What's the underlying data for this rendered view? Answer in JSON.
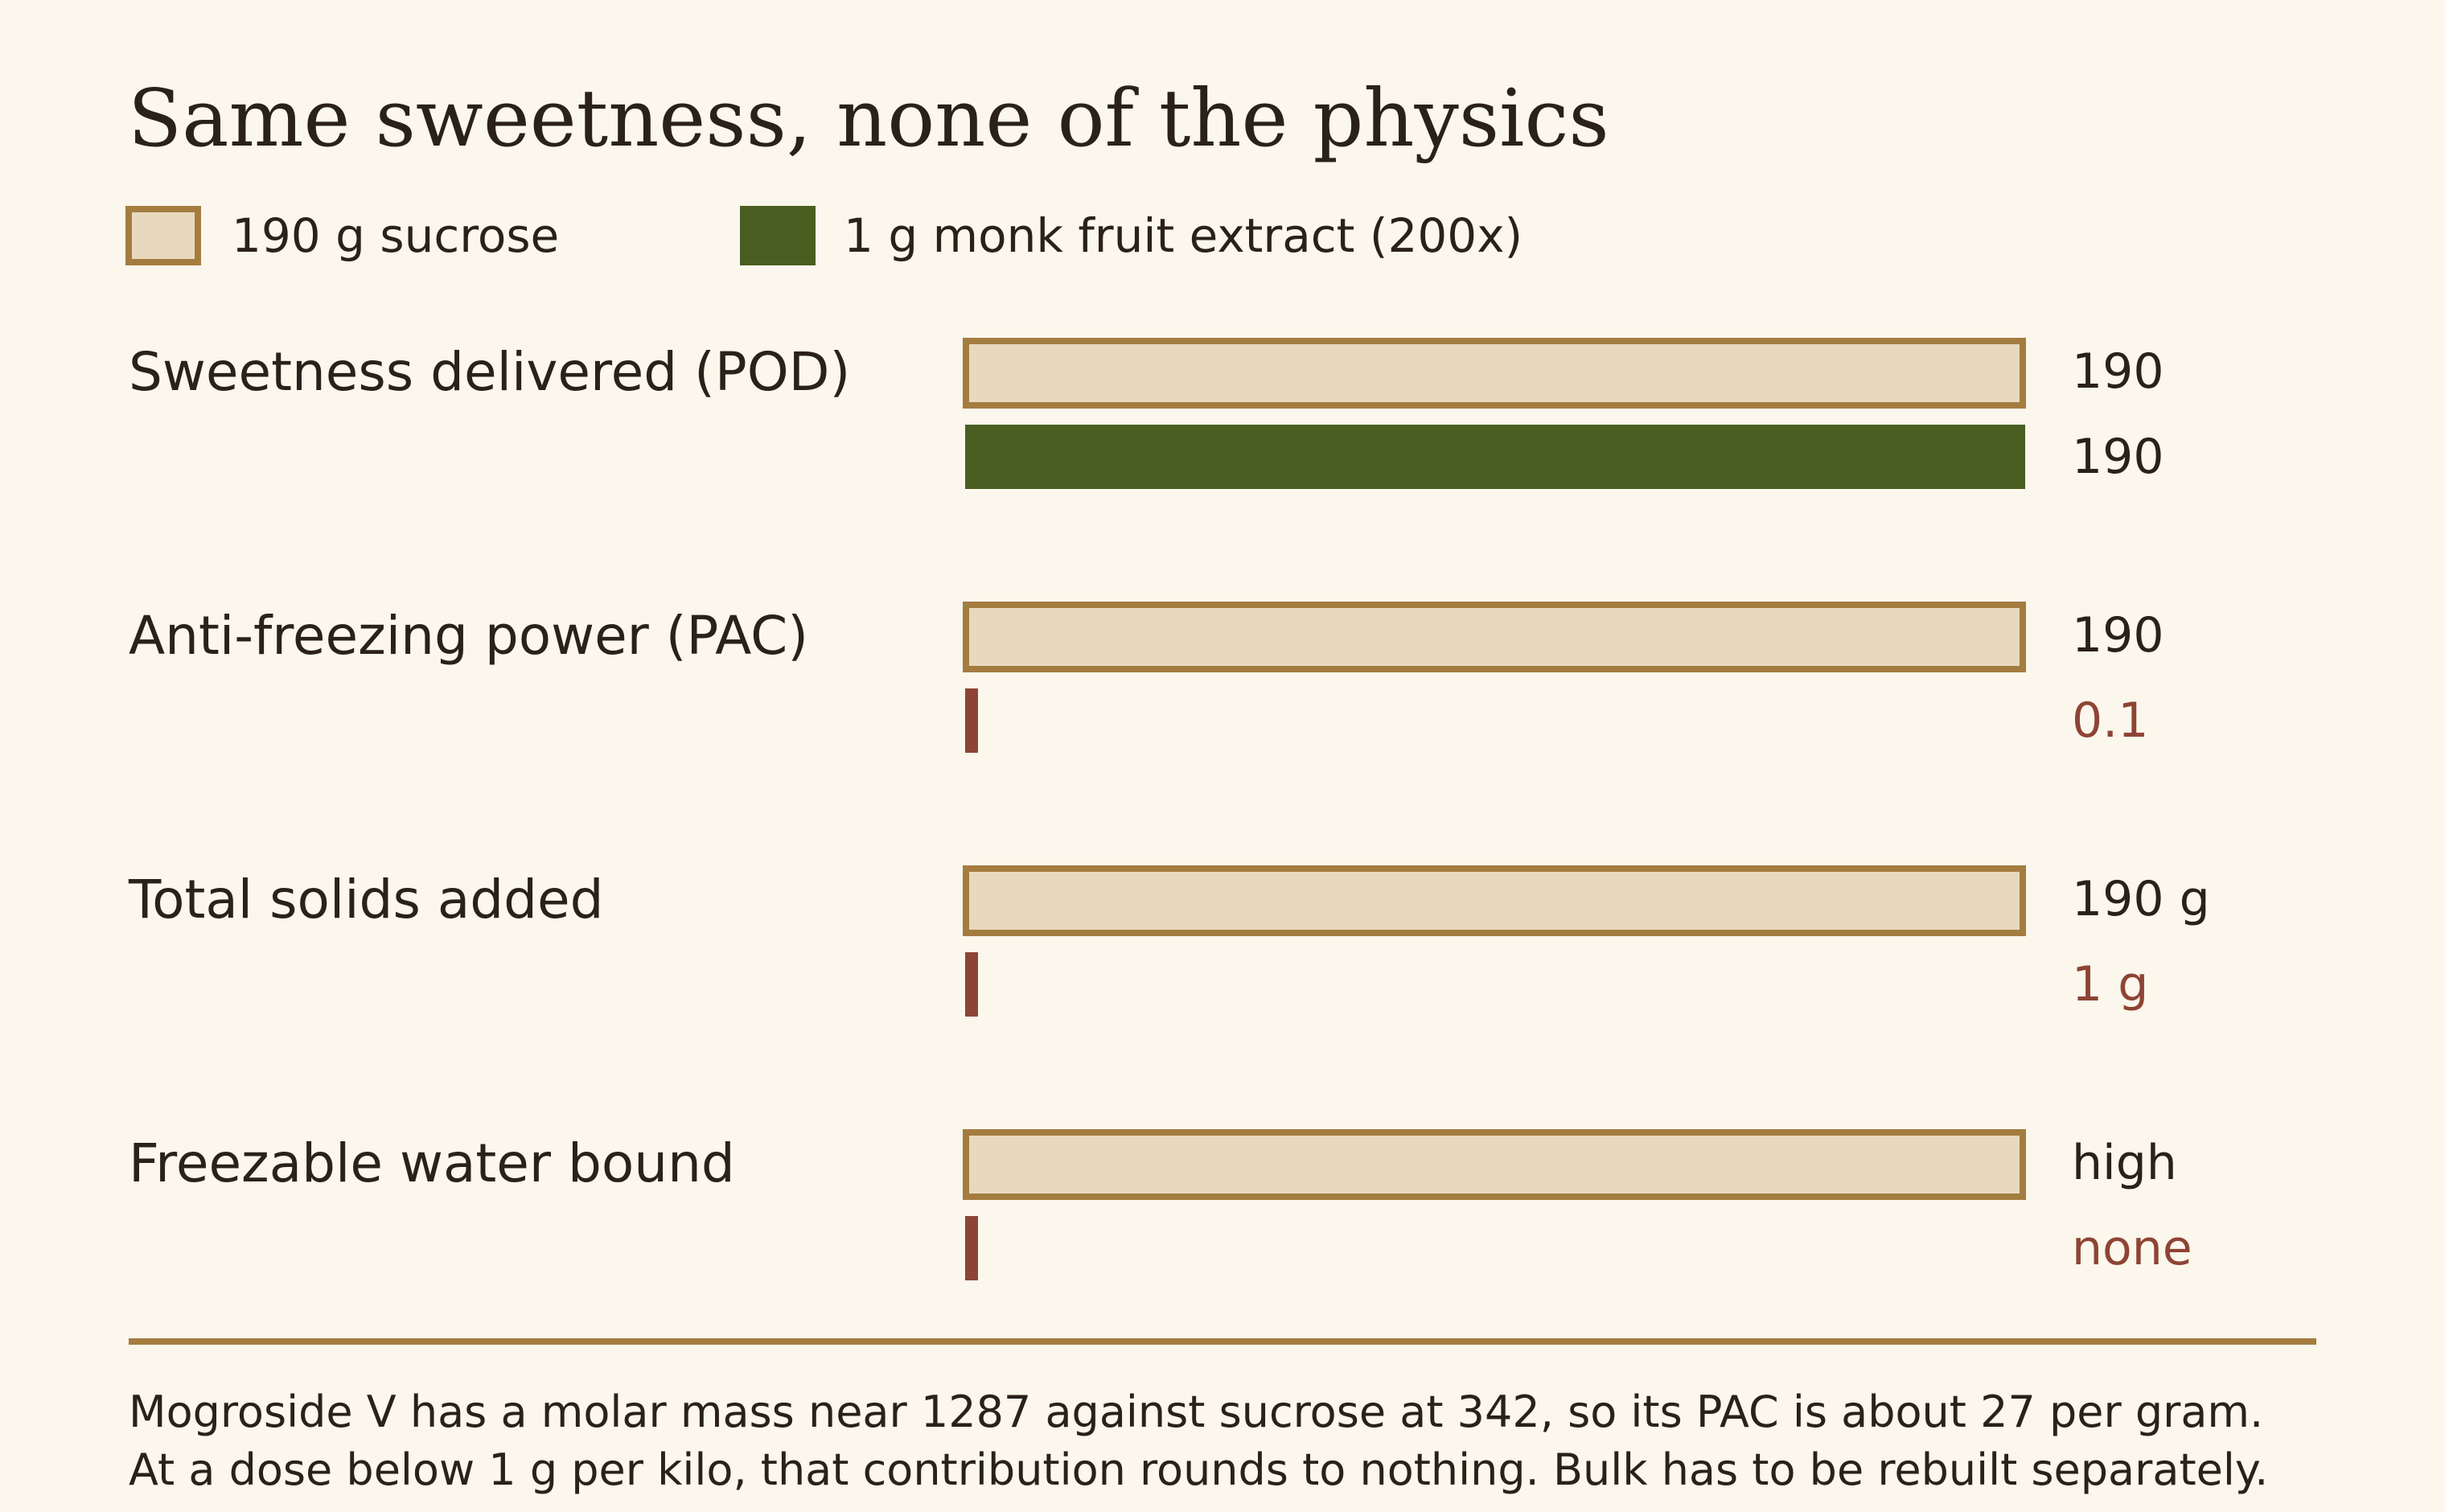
{
  "chart_data": {
    "type": "bar",
    "title": "Same sweetness, none of the physics",
    "legend": [
      {
        "name": "190 g sucrose",
        "color": "#e8d9be",
        "border": "#a47c40"
      },
      {
        "name": "1 g monk fruit extract (200x)",
        "color": "#4a5e22"
      }
    ],
    "categories": [
      "Sweetness delivered (POD)",
      "Anti-freezing power (PAC)",
      "Total solids added",
      "Freezable water bound"
    ],
    "series": [
      {
        "name": "190 g sucrose",
        "values": [
          190,
          190,
          190,
          1
        ],
        "labels": [
          "190",
          "190",
          "190 g",
          "high"
        ]
      },
      {
        "name": "1 g monk fruit extract (200x)",
        "values": [
          190,
          0.1,
          1,
          0
        ],
        "labels": [
          "190",
          "0.1",
          "1 g",
          "none"
        ]
      }
    ],
    "scale_max": [
      190,
      190,
      190,
      1
    ],
    "colors": {
      "sucrose_fill": "#e8d9be",
      "sucrose_border": "#a47c40",
      "monk_fill": "#4a5e22",
      "deficit": "#8e4435"
    },
    "notes": [
      "Mogroside V has a molar mass near 1287 against sucrose at 342, so its PAC is about 27 per gram.",
      "At a dose below 1 g per kilo, that contribution rounds to nothing. Bulk has to be rebuilt separately."
    ]
  }
}
